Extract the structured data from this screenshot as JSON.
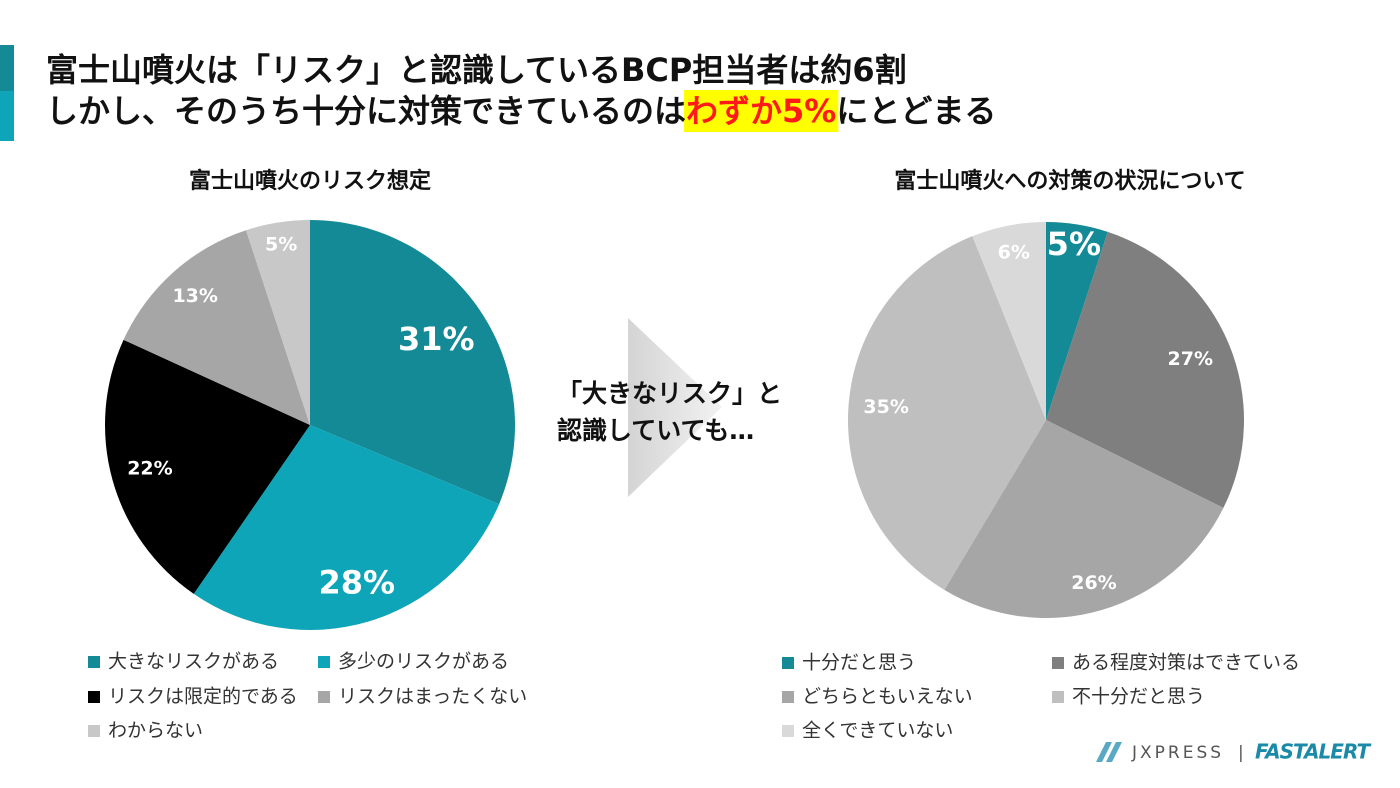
{
  "header": {
    "line1": "富士山噴火は「リスク」と認識しているBCP担当者は約6割",
    "line2_before": "しかし、そのうち十分に対策できているのは",
    "line2_highlight": "わずか5%",
    "line2_after": "にとどまる"
  },
  "arrow_text": [
    "「大きなリスク」と",
    "認識していても…"
  ],
  "footer": {
    "logo1": "JXPRESS",
    "separator": "|",
    "logo2": "FASTALERT"
  },
  "chart_data": [
    {
      "type": "pie",
      "title": "富士山噴火のリスク想定",
      "categories": [
        "大きなリスクがある",
        "多少のリスクがある",
        "リスクは限定的である",
        "リスクはまったくない",
        "わからない"
      ],
      "values": [
        31,
        28,
        22,
        13,
        5
      ],
      "value_labels": [
        "31%",
        "28%",
        "22%",
        "13%",
        "5%"
      ],
      "colors": [
        "#138a96",
        "#0ea5b8",
        "#000000",
        "#a6a6a6",
        "#c8c8c8"
      ]
    },
    {
      "type": "pie",
      "title": "富士山噴火への対策の状況について",
      "categories": [
        "十分だと思う",
        "ある程度対策はできている",
        "どちらともいえない",
        "不十分だと思う",
        "全くできていない"
      ],
      "values": [
        5,
        27,
        26,
        35,
        6
      ],
      "value_labels": [
        "5%",
        "27%",
        "26%",
        "35%",
        "6%"
      ],
      "colors": [
        "#138a96",
        "#7f7f7f",
        "#a6a6a6",
        "#bfbfbf",
        "#d9d9d9"
      ]
    }
  ]
}
